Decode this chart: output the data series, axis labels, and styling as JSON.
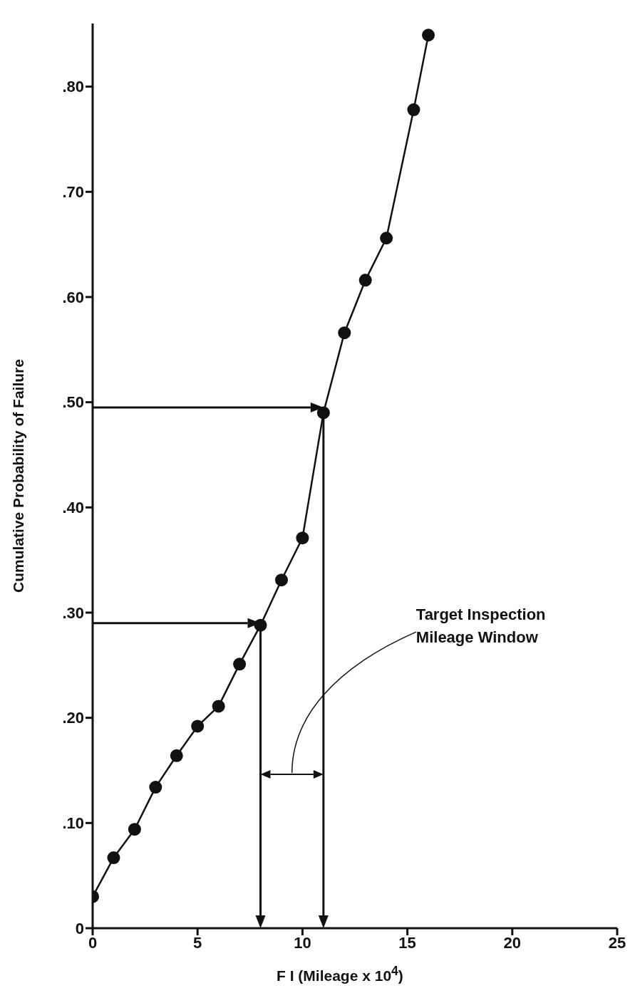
{
  "chart_data": {
    "type": "line",
    "xlabel": "F I (Mileage x 10$^{4}$)",
    "ylabel": "Cumulative Probability of Failure",
    "x": [
      0,
      1,
      2,
      3,
      4,
      5,
      6,
      7,
      8,
      9,
      10,
      11,
      12,
      13,
      14,
      15.3,
      16
    ],
    "series": [
      {
        "color": "#111111",
        "values": [
          0.03,
          0.067,
          0.094,
          0.134,
          0.164,
          0.192,
          0.211,
          0.251,
          0.288,
          0.331,
          0.371,
          0.49,
          0.566,
          0.616,
          0.656,
          0.778,
          0.849
        ]
      }
    ],
    "xlim": [
      0,
      25
    ],
    "xticks": [
      0,
      5,
      10,
      15,
      20,
      25
    ],
    "ylim": [
      0,
      0.86
    ],
    "yticks": [
      0,
      {
        "value": 0.1,
        "label": ".10"
      },
      {
        "value": 0.2,
        "label": ".20"
      },
      {
        "value": 0.3,
        "label": ".30"
      },
      {
        "value": 0.4,
        "label": ".40"
      },
      {
        "value": 0.5,
        "label": ".50"
      },
      {
        "value": 0.6,
        "label": ".60"
      },
      {
        "value": 0.7,
        "label": ".70"
      },
      {
        "value": 0.8,
        "label": ".80"
      }
    ],
    "marker": "circle",
    "ref_lines": [
      {
        "axis": "y",
        "value": 0.29
      },
      {
        "axis": "y",
        "value": 0.495
      },
      {
        "axis": "x",
        "value": 8
      },
      {
        "axis": "x",
        "value": 11
      }
    ],
    "annotations": [
      "Target Inspection Mileage Window"
    ]
  }
}
